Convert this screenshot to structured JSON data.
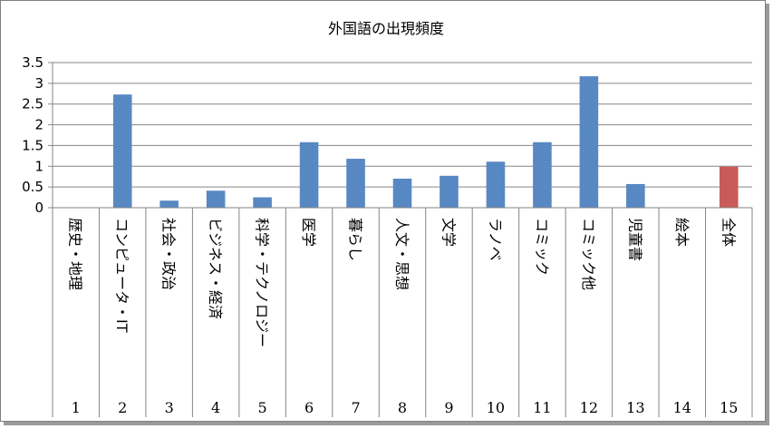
{
  "chart_data": {
    "type": "bar",
    "title": "外国語の出現頻度",
    "xlabel": "",
    "ylabel": "",
    "ylim": [
      0,
      3.5
    ],
    "yticks": [
      "0",
      "0.5",
      "1",
      "1.5",
      "2",
      "2.5",
      "3",
      "3.5"
    ],
    "grid": true,
    "legend": "none",
    "categories": [
      {
        "num": "1",
        "label": "歴史・地理"
      },
      {
        "num": "2",
        "label": "コンピュータ・IT"
      },
      {
        "num": "3",
        "label": "社会・政治"
      },
      {
        "num": "4",
        "label": "ビジネス・経済"
      },
      {
        "num": "5",
        "label": "科学・テクノロジー"
      },
      {
        "num": "6",
        "label": "医学"
      },
      {
        "num": "7",
        "label": "暮らし"
      },
      {
        "num": "8",
        "label": "人文・思想"
      },
      {
        "num": "9",
        "label": "文学"
      },
      {
        "num": "10",
        "label": "ラノベ"
      },
      {
        "num": "11",
        "label": "コミック"
      },
      {
        "num": "12",
        "label": "コミック他"
      },
      {
        "num": "13",
        "label": "児童書"
      },
      {
        "num": "14",
        "label": "絵本"
      },
      {
        "num": "15",
        "label": "全体"
      }
    ],
    "values": [
      0,
      2.73,
      0.17,
      0.41,
      0.25,
      1.58,
      1.18,
      0.7,
      0.77,
      1.11,
      1.58,
      3.17,
      0.57,
      0,
      0.99
    ],
    "colors": {
      "bar": "#4a7ebb",
      "highlight": "#c0504d",
      "grid": "#868686"
    },
    "highlight_index": 14
  }
}
